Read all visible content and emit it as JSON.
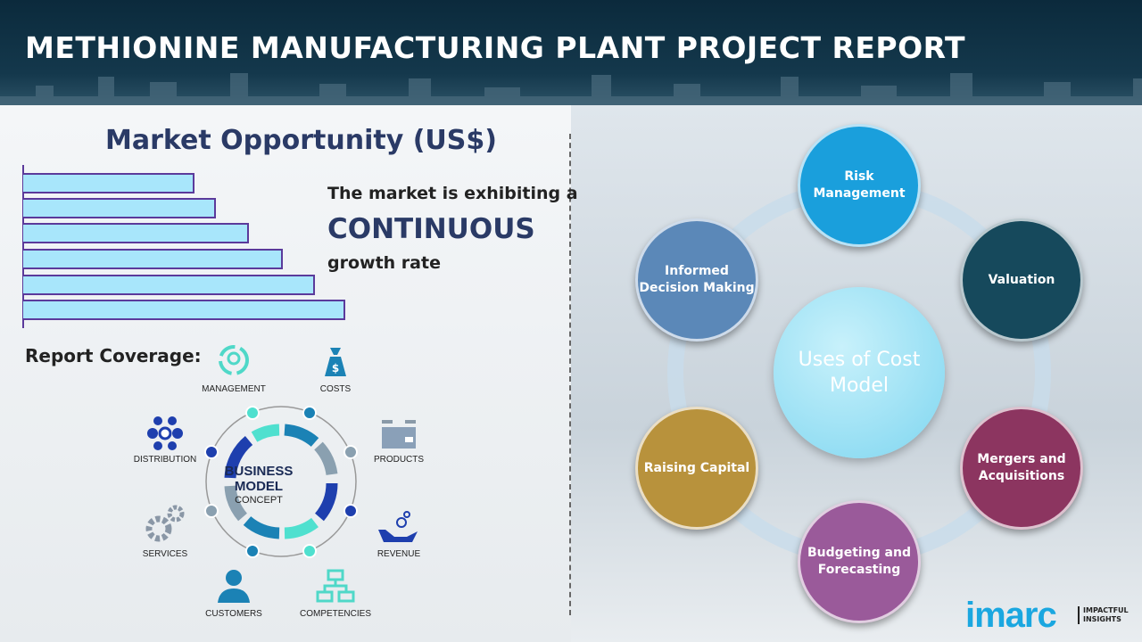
{
  "header": {
    "title": "METHIONINE MANUFACTURING PLANT PROJECT REPORT"
  },
  "market": {
    "title": "Market Opportunity (US$)",
    "line1": "The market is exhibiting a",
    "line2": "CONTINUOUS",
    "line3": "growth rate",
    "bar_count": 6
  },
  "coverage": {
    "title": "Report Coverage:",
    "center_line1": "BUSINESS",
    "center_line2": "MODEL",
    "center_line3": "CONCEPT",
    "items": [
      "MANAGEMENT",
      "COSTS",
      "PRODUCTS",
      "REVENUE",
      "COMPETENCIES",
      "CUSTOMERS",
      "SERVICES",
      "DISTRIBUTION"
    ]
  },
  "uses": {
    "center": "Uses of Cost Model",
    "items": [
      {
        "label": "Risk Management",
        "color": "#1a9fdc"
      },
      {
        "label": "Valuation",
        "color": "#16495c"
      },
      {
        "label": "Mergers and Acquisitions",
        "color": "#8c3560"
      },
      {
        "label": "Budgeting and Forecasting",
        "color": "#9a5a9a"
      },
      {
        "label": "Raising Capital",
        "color": "#b8923c"
      },
      {
        "label": "Informed Decision Making",
        "color": "#5b88b8"
      }
    ]
  },
  "brand": {
    "logo": "imarc",
    "tagline1": "IMPACTFUL",
    "tagline2": "INSIGHTS"
  }
}
